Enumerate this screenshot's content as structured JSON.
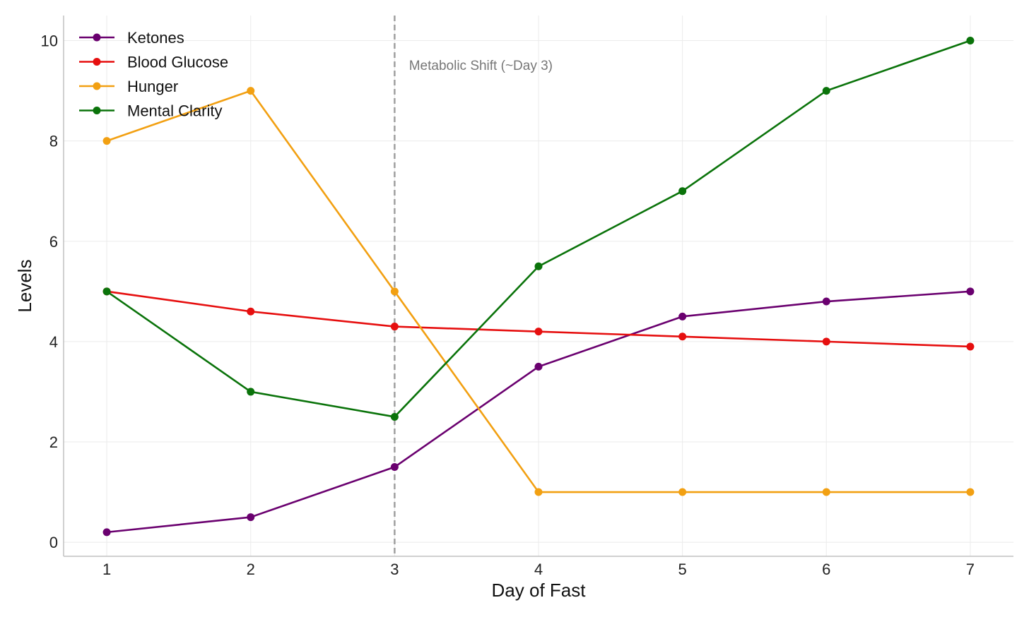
{
  "chart_data": {
    "type": "line",
    "title": "",
    "xlabel": "Day of Fast",
    "ylabel": "Levels",
    "x": [
      1,
      2,
      3,
      4,
      5,
      6,
      7
    ],
    "x_ticks": [
      "1",
      "2",
      "3",
      "4",
      "5",
      "6",
      "7"
    ],
    "xlim": [
      0.7,
      7.3
    ],
    "y_ticks": [
      "0",
      "2",
      "4",
      "6",
      "8",
      "10"
    ],
    "ylim": [
      -0.28,
      10.5
    ],
    "grid": true,
    "legend_position": "top-left",
    "series": [
      {
        "name": "Ketones",
        "color": "#6a006f",
        "values": [
          0.2,
          0.5,
          1.5,
          3.5,
          4.5,
          4.8,
          5.0
        ]
      },
      {
        "name": "Blood Glucose",
        "color": "#e60f0f",
        "values": [
          5.0,
          4.6,
          4.3,
          4.2,
          4.1,
          4.0,
          3.9
        ]
      },
      {
        "name": "Hunger",
        "color": "#f2a012",
        "values": [
          8,
          9,
          5,
          1,
          1,
          1,
          1
        ]
      },
      {
        "name": "Mental Clarity",
        "color": "#0a730a",
        "values": [
          5.0,
          3.0,
          2.5,
          5.5,
          7.0,
          9.0,
          10.0
        ]
      }
    ],
    "annotations": [
      {
        "type": "vline",
        "x": 3,
        "color": "#a0a0a0",
        "label": "Metabolic Shift (~Day 3)",
        "label_x": 3.1,
        "label_y": 9.5
      }
    ]
  }
}
